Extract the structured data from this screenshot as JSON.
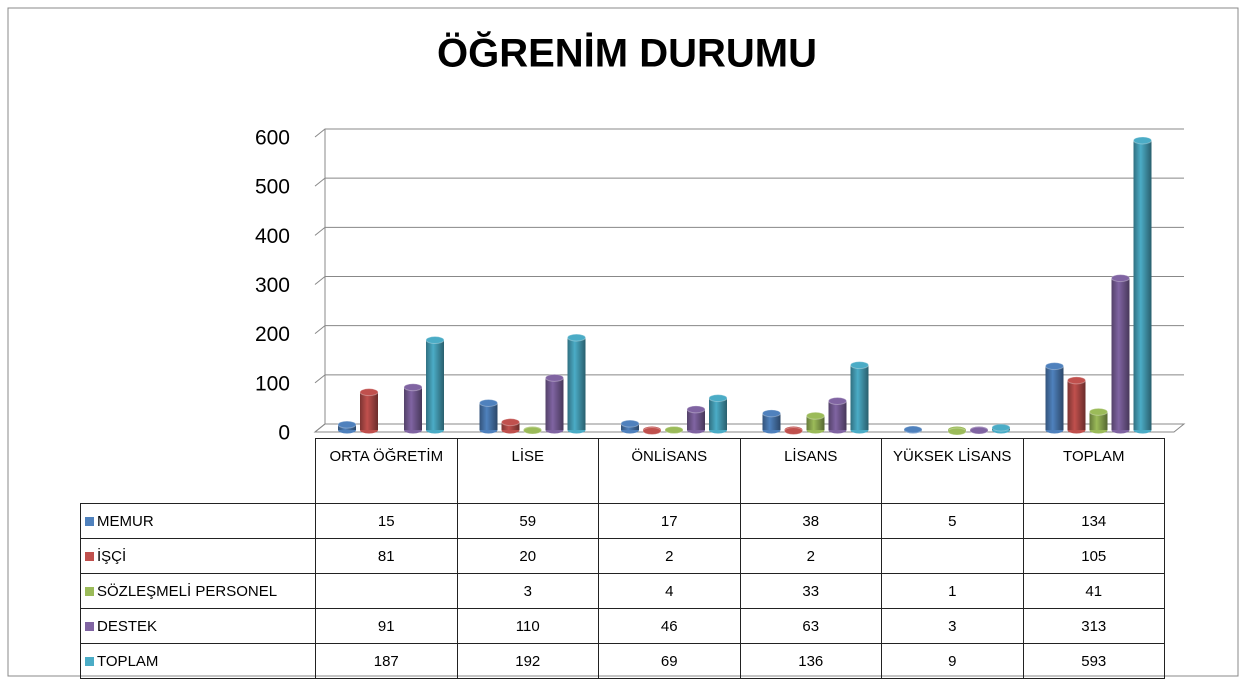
{
  "chart_data": {
    "type": "bar3d",
    "title": "ÖĞRENİM DURUMU",
    "categories": [
      "ORTA ÖĞRETİM",
      "LİSE",
      "ÖNLİSANS",
      "LİSANS",
      "YÜKSEK LİSANS",
      "TOPLAM"
    ],
    "series": [
      {
        "name": "MEMUR",
        "color": "#4f81bd",
        "values": [
          15,
          59,
          17,
          38,
          5,
          134
        ]
      },
      {
        "name": "İŞÇİ",
        "color": "#c0504d",
        "values": [
          81,
          20,
          2,
          2,
          null,
          105
        ]
      },
      {
        "name": "SÖZLEŞMELİ PERSONEL",
        "color": "#9bbb59",
        "values": [
          null,
          3,
          4,
          33,
          1,
          41
        ]
      },
      {
        "name": "DESTEK",
        "color": "#8064a2",
        "values": [
          91,
          110,
          46,
          63,
          3,
          313
        ]
      },
      {
        "name": "TOPLAM",
        "color": "#4bacc6",
        "values": [
          187,
          192,
          69,
          136,
          9,
          593
        ]
      }
    ],
    "ylim": [
      0,
      600
    ],
    "yticks": [
      0,
      100,
      200,
      300,
      400,
      500,
      600
    ],
    "grid": true
  }
}
